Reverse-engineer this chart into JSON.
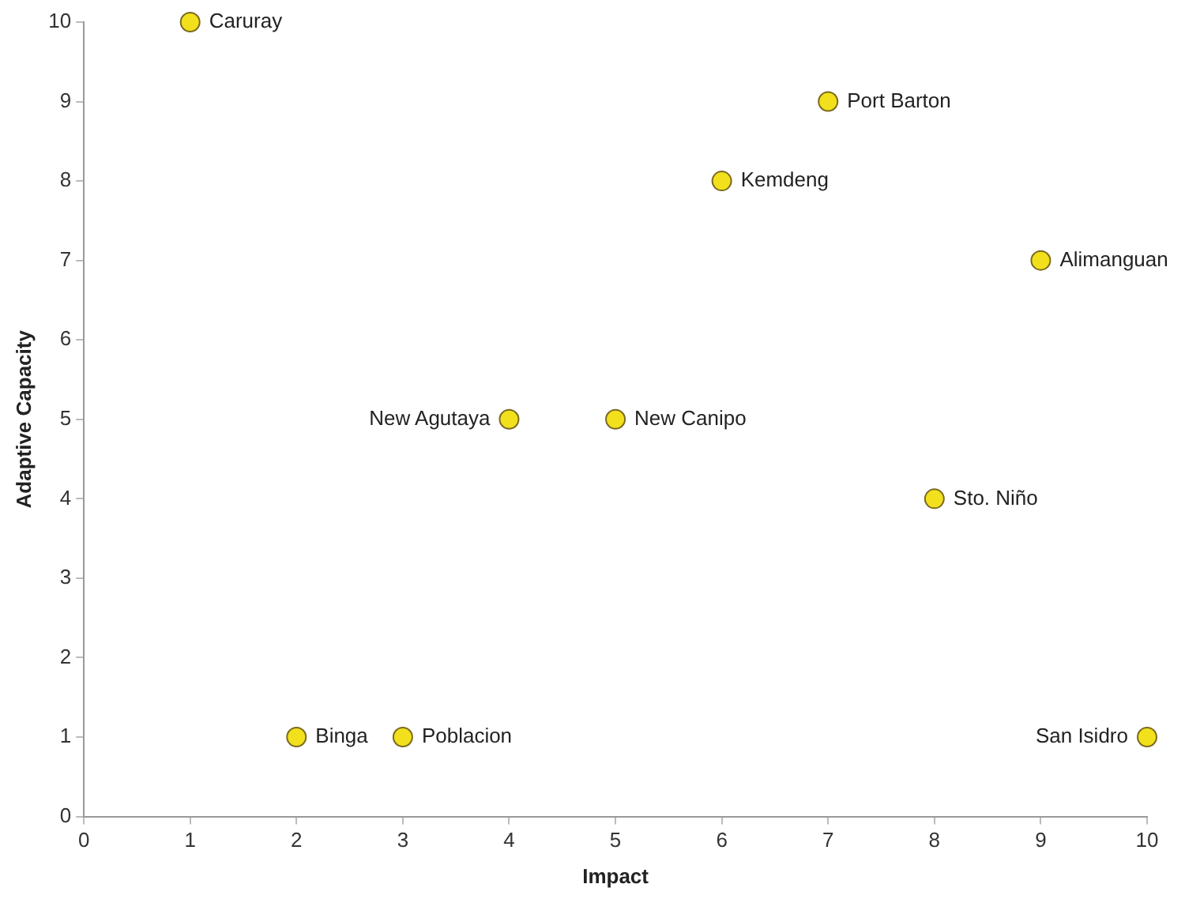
{
  "chart_data": {
    "type": "scatter",
    "xlabel": "Impact",
    "ylabel": "Adaptive Capacity",
    "x": [
      1,
      7,
      6,
      9,
      4,
      5,
      8,
      2,
      3,
      10
    ],
    "series": [
      {
        "color": "#f2e01c",
        "values": [
          10,
          9,
          8,
          7,
          5,
          5,
          4,
          1,
          1,
          1
        ]
      }
    ],
    "xlim": [
      0,
      10
    ],
    "xticks": [
      0,
      1,
      2,
      3,
      4,
      5,
      6,
      7,
      8,
      9,
      10
    ],
    "ylim": [
      0,
      10
    ],
    "yticks": [
      0,
      1,
      2,
      3,
      4,
      5,
      6,
      7,
      8,
      9,
      10
    ],
    "grid": false,
    "legend": false,
    "marker": "circle",
    "annotations": [
      {
        "text": "Caruray",
        "x": 1,
        "y": 10
      },
      {
        "text": "Port Barton",
        "x": 7,
        "y": 9
      },
      {
        "text": "Kemdeng",
        "x": 6,
        "y": 8
      },
      {
        "text": "Alimanguan",
        "x": 9,
        "y": 7
      },
      {
        "text": "New Agutaya",
        "x": 4,
        "y": 5
      },
      {
        "text": "New Canipo",
        "x": 5,
        "y": 5
      },
      {
        "text": "Sto. Niño",
        "x": 8,
        "y": 4
      },
      {
        "text": "Binga",
        "x": 2,
        "y": 1
      },
      {
        "text": "Poblacion",
        "x": 3,
        "y": 1
      },
      {
        "text": "San Isidro",
        "x": 10,
        "y": 1
      }
    ]
  }
}
